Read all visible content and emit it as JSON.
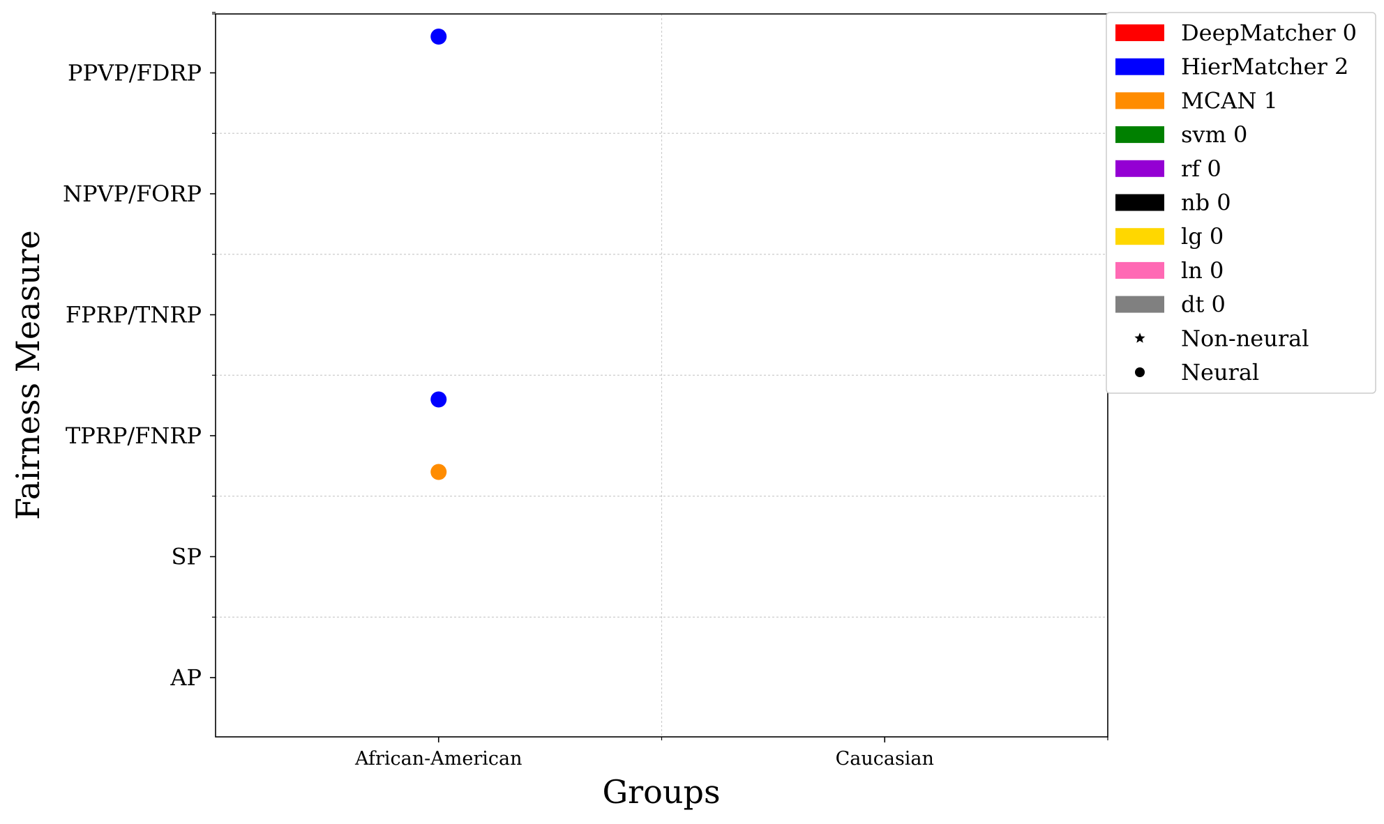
{
  "chart_data": {
    "type": "scatter",
    "xlabel": "Groups",
    "ylabel": "Fairness Measure",
    "x_categories": [
      "African-American",
      "Caucasian"
    ],
    "y_categories": [
      "AP",
      "SP",
      "TPRP/FNRP",
      "FPRP/TNRP",
      "NPVP/FORP",
      "PPVP/FDRP"
    ],
    "grid": true,
    "legend_position": "outside-top-right",
    "series": [
      {
        "name": "DeepMatcher 0",
        "color": "#ff0000",
        "marker": "circle",
        "points": []
      },
      {
        "name": "HierMatcher 2",
        "color": "#0000ff",
        "marker": "circle",
        "points": [
          {
            "x": "African-American",
            "y": "PPVP/FDRP",
            "offset": 0.3
          },
          {
            "x": "African-American",
            "y": "TPRP/FNRP",
            "offset": 0.3
          }
        ]
      },
      {
        "name": "MCAN 1",
        "color": "#ff8c00",
        "marker": "circle",
        "points": [
          {
            "x": "African-American",
            "y": "TPRP/FNRP",
            "offset": -0.3
          }
        ]
      },
      {
        "name": "svm 0",
        "color": "#008000",
        "marker": "star",
        "points": []
      },
      {
        "name": "rf 0",
        "color": "#9400d3",
        "marker": "star",
        "points": []
      },
      {
        "name": "nb 0",
        "color": "#000000",
        "marker": "star",
        "points": []
      },
      {
        "name": "lg 0",
        "color": "#ffd700",
        "marker": "star",
        "points": []
      },
      {
        "name": "ln 0",
        "color": "#ff69b4",
        "marker": "star",
        "points": []
      },
      {
        "name": "dt 0",
        "color": "#808080",
        "marker": "star",
        "points": []
      }
    ],
    "marker_legend": [
      {
        "name": "Non-neural",
        "symbol": "star"
      },
      {
        "name": "Neural",
        "symbol": "circle"
      }
    ]
  }
}
